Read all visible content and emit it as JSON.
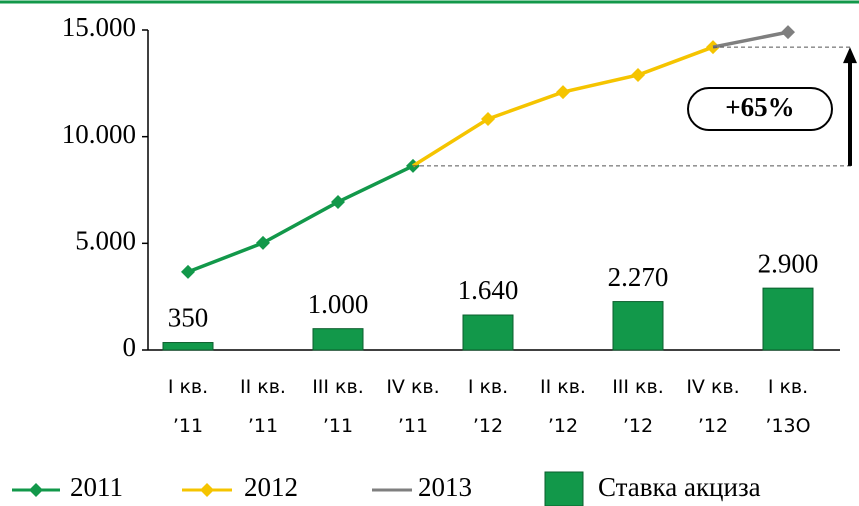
{
  "chart_data": {
    "type": "line",
    "categories": [
      "I кв.\n’11",
      "II кв.\n’11",
      "III кв.\n’11",
      "IV кв.\n’11",
      "I кв.\n’12",
      "II кв.\n’12",
      "III кв.\n’12",
      "IV кв.\n’12",
      "I кв.\n’13О"
    ],
    "series": [
      {
        "name": "2011",
        "color": "#12984a",
        "values": [
          3660,
          5020,
          6940,
          8630,
          null,
          null,
          null,
          null,
          null
        ]
      },
      {
        "name": "2012",
        "color": "#f5c400",
        "values": [
          null,
          null,
          null,
          8630,
          10830,
          12090,
          12890,
          14200,
          null
        ]
      },
      {
        "name": "2013",
        "color": "#7f7f7f",
        "values": [
          null,
          null,
          null,
          null,
          null,
          null,
          null,
          14200,
          14900
        ]
      },
      {
        "name": "Ставка акциза",
        "type": "bar",
        "color": "#12984a",
        "values": [
          350,
          null,
          1000,
          null,
          1640,
          null,
          2270,
          null,
          2900
        ],
        "value_labels": [
          "350",
          null,
          "1.000",
          null,
          "1.640",
          null,
          "2.270",
          null,
          "2.900"
        ]
      }
    ],
    "annotation": "+65%",
    "ylim": [
      0,
      15000
    ],
    "yticks": [
      0,
      {
        "value": 5000,
        "label": "5.000"
      },
      {
        "value": 10000,
        "label": "10.000"
      },
      {
        "value": 15000,
        "label": "15.000"
      }
    ],
    "legend": "bottom"
  }
}
